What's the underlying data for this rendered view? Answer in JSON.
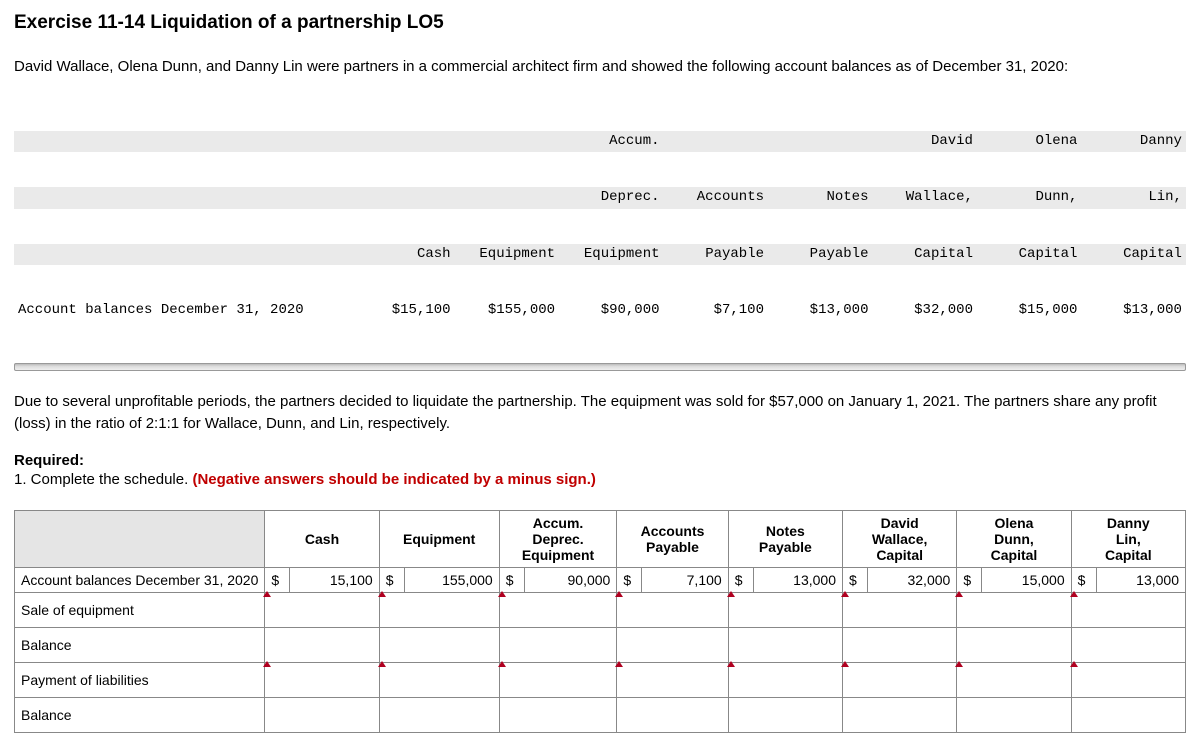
{
  "title": "Exercise 11-14 Liquidation of a partnership LO5",
  "intro": "David Wallace, Olena Dunn, and Danny Lin were partners in a commercial architect firm and showed the following account balances as of December 31, 2020:",
  "balances_table": {
    "header_rows": [
      [
        "",
        "",
        "Accum.",
        "",
        "",
        "David",
        "Olena",
        "Danny"
      ],
      [
        "",
        "",
        "Deprec.",
        "Accounts",
        "Notes",
        "Wallace,",
        "Dunn,",
        "Lin,"
      ],
      [
        "Cash",
        "Equipment",
        "Equipment",
        "Payable",
        "Payable",
        "Capital",
        "Capital",
        "Capital"
      ]
    ],
    "row_label": "Account balances December 31, 2020",
    "values": [
      "$15,100",
      "$155,000",
      "$90,000",
      "$7,100",
      "$13,000",
      "$32,000",
      "$15,000",
      "$13,000"
    ]
  },
  "para2": "Due to several unprofitable periods, the partners decided to liquidate the partnership. The equipment was sold for $57,000 on January 1, 2021. The partners share any profit (loss) in the ratio of 2:1:1 for Wallace, Dunn, and Lin, respectively.",
  "required_label": "Required:",
  "required_item": "1. Complete the schedule. ",
  "required_instr": "(Negative answers should be indicated by a minus sign.)",
  "schedule": {
    "columns": [
      "Cash",
      "Equipment",
      "Accum. Deprec. Equipment",
      "Accounts Payable",
      "Notes Payable",
      "David Wallace, Capital",
      "Olena Dunn, Capital",
      "Danny Lin, Capital"
    ],
    "col_lines": [
      [
        "Cash"
      ],
      [
        "Equipment"
      ],
      [
        "Accum.",
        "Deprec.",
        "Equipment"
      ],
      [
        "Accounts",
        "Payable"
      ],
      [
        "Notes",
        "Payable"
      ],
      [
        "David",
        "Wallace,",
        "Capital"
      ],
      [
        "Olena",
        "Dunn,",
        "Capital"
      ],
      [
        "Danny",
        "Lin,",
        "Capital"
      ]
    ],
    "rows": [
      {
        "label": "Account balances December 31, 2020",
        "type": "prefilled",
        "cells": [
          {
            "cur": "$",
            "val": "15,100"
          },
          {
            "cur": "$",
            "val": "155,000"
          },
          {
            "cur": "$",
            "val": "90,000"
          },
          {
            "cur": "$",
            "val": "7,100"
          },
          {
            "cur": "$",
            "val": "13,000"
          },
          {
            "cur": "$",
            "val": "32,000"
          },
          {
            "cur": "$",
            "val": "15,000"
          },
          {
            "cur": "$",
            "val": "13,000"
          }
        ]
      },
      {
        "label": "Sale of equipment",
        "type": "input-caret"
      },
      {
        "label": "Balance",
        "type": "input"
      },
      {
        "label": "Payment of liabilities",
        "type": "input-caret"
      },
      {
        "label": "Balance",
        "type": "input"
      }
    ]
  }
}
